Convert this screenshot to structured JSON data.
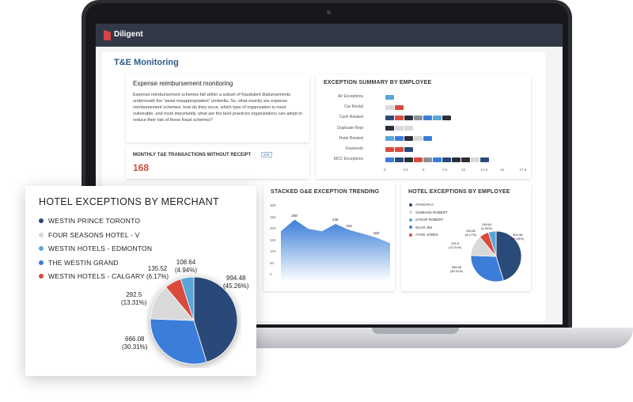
{
  "app": {
    "brand": "Diligent",
    "page_title": "T&E Monitoring"
  },
  "colors": {
    "navy": "#2a4a78",
    "light_gray": "#d9d9d9",
    "light_blue": "#5aa6d8",
    "blue": "#3b7dd8",
    "red": "#d94b3d",
    "dark": "#2b2f3a",
    "topbar": "#333847"
  },
  "intro": {
    "title": "Expense reimbursement monitoring",
    "body": "Expense reimbursement schemes fall within a subset of fraudulent disbursements underneath the “asset misappropriation” umbrella. So, what exactly are expense reimbursement schemes, how do they occur, which type of organization is most vulnerable, and most importantly, what are the best practices organizations can adopt to reduce their risk of these fraud schemes?"
  },
  "receipt": {
    "title": "MONTHLY T&E TRANSACTIONS WITHOUT RECEIPT",
    "badge": "IDR",
    "value": "168"
  },
  "exception_summary": {
    "title": "EXCEPTION SUMMARY BY EMPLOYEE",
    "rows": [
      "Air Exceptions",
      "Car Rental",
      "Cash Related",
      "Duplicate Rept",
      "Hotel Related",
      "Keywords",
      "MCC Exceptions"
    ],
    "ticks": [
      "0",
      "2.5",
      "5",
      "7.5",
      "10",
      "12.5",
      "15",
      "17.5"
    ]
  },
  "trend": {
    "title": "STACKED G&E EXCEPTION TRENDING",
    "y_ticks": [
      "300",
      "250",
      "200",
      "150",
      "100",
      "50",
      "0"
    ],
    "labels": [
      "258",
      "240",
      "215",
      "183"
    ]
  },
  "hotel_employee": {
    "title": "HOTEL EXCEPTIONS BY EMPLOYEE",
    "legend": [
      "AYANI RAJ",
      "SOMKINS ROBERT",
      "SYNAR ROBERT",
      "SCAR JIM",
      "AYOD JAMES"
    ],
    "labels": [
      "108.64\n(4.94%)",
      "135.52\n(6.17%)",
      "292.5\n(13.31%)",
      "666.08\n(30.31%)",
      "994.48\n(45.26%)"
    ]
  },
  "merchant": {
    "title": "HOTEL EXCEPTIONS BY MERCHANT",
    "legend": [
      "WESTIN PRINCE TORONTO",
      "FOUR SEASONS HOTEL - V",
      "WESTIN HOTELS - EDMONTON",
      "THE WESTIN GRAND",
      "WESTIN HOTELS - CALGARY"
    ],
    "slices": {
      "s994": "994.48",
      "s994_pct": "(45.26%)",
      "s666": "666.08",
      "s666_pct": "(30.31%)",
      "s292": "292.5",
      "s292_pct": "(13.31%)",
      "s135": "135.52",
      "s135_pct": "(6.17%)",
      "s108": "108.64",
      "s108_pct": "(4.94%)"
    }
  },
  "chart_data": [
    {
      "type": "pie",
      "title": "HOTEL EXCEPTIONS BY MERCHANT",
      "categories": [
        "WESTIN PRINCE TORONTO",
        "FOUR SEASONS HOTEL - V",
        "WESTIN HOTELS - EDMONTON",
        "THE WESTIN GRAND",
        "WESTIN HOTELS - CALGARY"
      ],
      "values": [
        994.48,
        292.5,
        108.64,
        666.08,
        135.52
      ],
      "percent": [
        45.26,
        13.31,
        4.94,
        30.31,
        6.17
      ],
      "legend": "top-left"
    },
    {
      "type": "area",
      "title": "STACKED G&E EXCEPTION TRENDING",
      "ylim": [
        0,
        300
      ],
      "series": [
        {
          "values": [
            210,
            258,
            220,
            210,
            240,
            215,
            200,
            183,
            160
          ]
        }
      ],
      "data_labels": [
        258,
        240,
        215,
        183
      ]
    },
    {
      "type": "pie",
      "title": "HOTEL EXCEPTIONS BY EMPLOYEE",
      "values": [
        994.48,
        666.08,
        292.5,
        135.52,
        108.64
      ],
      "percent": [
        45.26,
        30.31,
        13.31,
        6.17,
        4.94
      ]
    }
  ]
}
